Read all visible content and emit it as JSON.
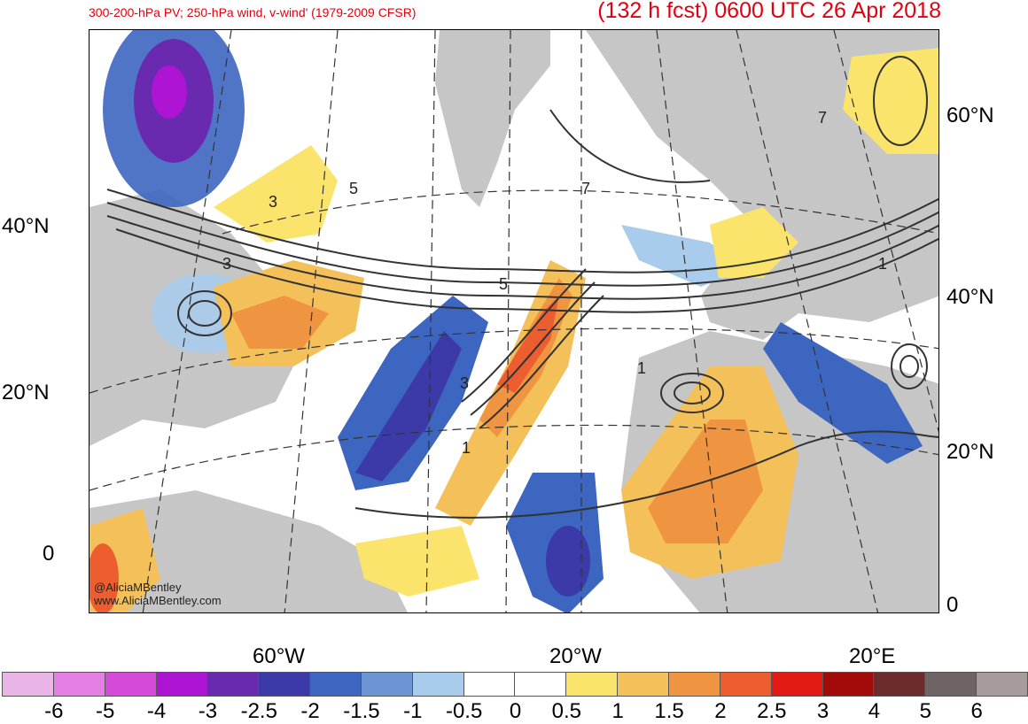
{
  "header": {
    "left_title": "300-200-hPa PV; 250-hPa wind, v-wind' (1979-2009 CFSR)",
    "right_title": "(132 h fcst) 0600 UTC 26 Apr 2018"
  },
  "map": {
    "lat_labels_left": [
      "40°N",
      "20°N",
      "0"
    ],
    "lat_labels_right": [
      "60°N",
      "40°N",
      "20°N",
      "0"
    ],
    "lon_labels": [
      "60°W",
      "20°W",
      "20°E"
    ],
    "contour_labels": [
      "3",
      "3",
      "5",
      "7",
      "5",
      "3",
      "1",
      "1",
      "1",
      "7"
    ],
    "credit_line1": "@AliciaMBentley",
    "credit_line2": "www.AliciaMBentley.com"
  },
  "colorbar": {
    "colors": [
      "#e9b5e7",
      "#e47fe6",
      "#d64ad9",
      "#ad14d4",
      "#6a2ab0",
      "#3c3aa8",
      "#3d66c0",
      "#6d95d4",
      "#a9cbec",
      "#ffffff",
      "#ffffff",
      "#fbe46b",
      "#f4c05a",
      "#ef9440",
      "#ec5e30",
      "#e31a14",
      "#a30a0a",
      "#6d2c2c",
      "#6f6464",
      "#a69c9c"
    ],
    "tick_labels": [
      "-6",
      "-5",
      "-4",
      "-3",
      "-2.5",
      "-2",
      "-1.5",
      "-1",
      "-0.5",
      "0",
      "0.5",
      "1",
      "1.5",
      "2",
      "2.5",
      "3",
      "4",
      "5",
      "6"
    ]
  }
}
